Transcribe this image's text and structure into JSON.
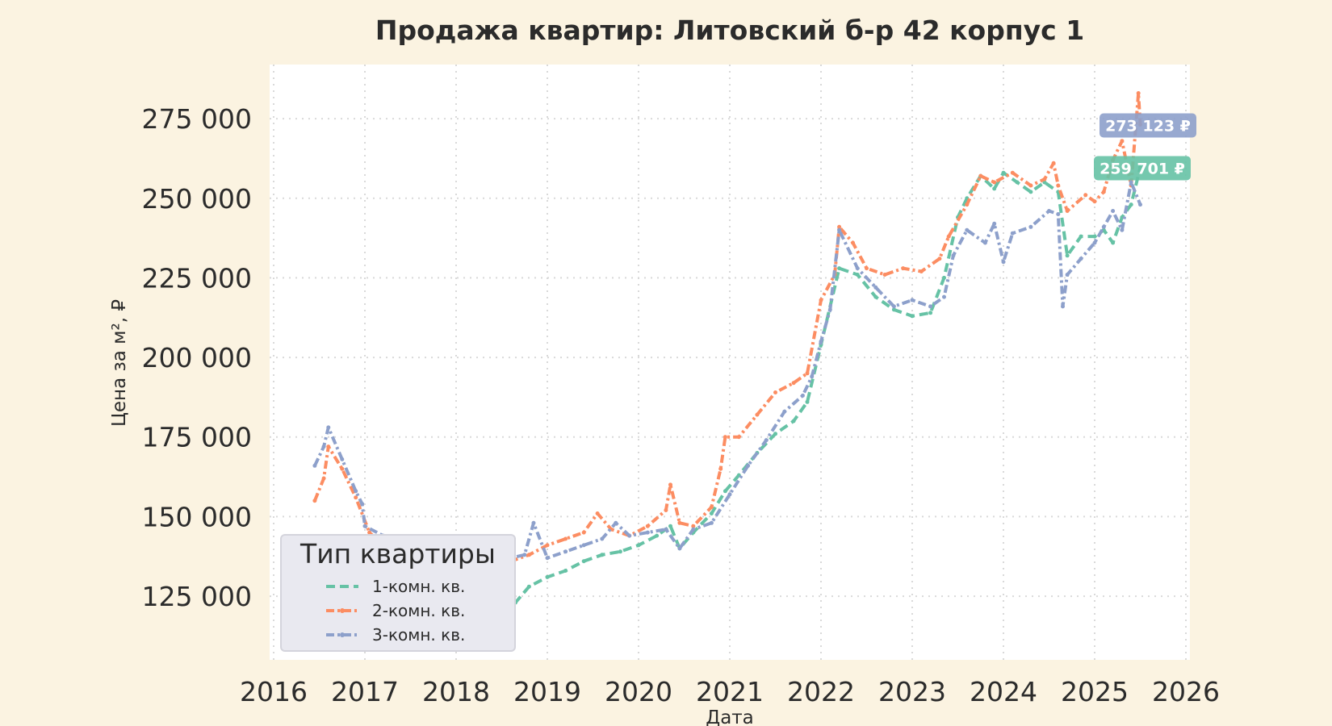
{
  "chart_data": {
    "type": "line",
    "title": "Продажа квартир: Литовский б-р 42 корпус 1",
    "xlabel": "Дата",
    "ylabel": "Цена за м², ₽",
    "xlim": [
      2016,
      2026
    ],
    "ylim": [
      105000,
      292000
    ],
    "x_ticks": [
      "2016",
      "2017",
      "2018",
      "2019",
      "2020",
      "2021",
      "2022",
      "2023",
      "2024",
      "2025",
      "2026"
    ],
    "y_ticks": [
      "125 000",
      "150 000",
      "175 000",
      "200 000",
      "225 000",
      "250 000",
      "275 000"
    ],
    "grid": true,
    "legend": {
      "title": "Тип квартиры",
      "position": "bottom-left"
    },
    "series": [
      {
        "name": "1-комн. кв.",
        "color": "#66c2a5",
        "style": "dashed",
        "x": [
          2016.45,
          2016.7,
          2017.0,
          2017.3,
          2017.6,
          2017.9,
          2018.1,
          2018.3,
          2018.5,
          2018.65,
          2018.8,
          2019.0,
          2019.2,
          2019.4,
          2019.6,
          2019.8,
          2020.0,
          2020.2,
          2020.35,
          2020.45,
          2020.6,
          2020.8,
          2020.95,
          2021.1,
          2021.3,
          2021.5,
          2021.7,
          2021.85,
          2022.0,
          2022.2,
          2022.4,
          2022.6,
          2022.8,
          2023.0,
          2023.2,
          2023.35,
          2023.5,
          2023.6,
          2023.75,
          2023.9,
          2024.0,
          2024.15,
          2024.3,
          2024.45,
          2024.6,
          2024.7,
          2024.85,
          2025.0,
          2025.1,
          2025.2,
          2025.3,
          2025.4,
          2025.5
        ],
        "values": [
          130000,
          129000,
          128000,
          127000,
          126000,
          125000,
          118000,
          116000,
          119000,
          123000,
          128000,
          131000,
          133000,
          136000,
          138000,
          139000,
          141000,
          144000,
          147000,
          140000,
          145000,
          151000,
          158000,
          163000,
          170000,
          176000,
          180000,
          186000,
          204000,
          228000,
          226000,
          219000,
          215000,
          213000,
          214000,
          225000,
          244000,
          250000,
          257000,
          253000,
          258000,
          255000,
          252000,
          255000,
          252000,
          232000,
          238000,
          238000,
          240000,
          236000,
          244000,
          248000,
          259701
        ]
      },
      {
        "name": "2-комн. кв.",
        "color": "#fc8d62",
        "style": "dashdot",
        "x": [
          2016.45,
          2016.55,
          2016.6,
          2016.75,
          2016.9,
          2017.05,
          2017.2,
          2017.4,
          2017.6,
          2017.8,
          2018.0,
          2018.2,
          2018.4,
          2018.6,
          2018.8,
          2019.0,
          2019.2,
          2019.4,
          2019.55,
          2019.7,
          2019.9,
          2020.1,
          2020.3,
          2020.35,
          2020.45,
          2020.6,
          2020.8,
          2020.9,
          2020.95,
          2021.1,
          2021.3,
          2021.5,
          2021.7,
          2021.85,
          2022.0,
          2022.15,
          2022.2,
          2022.35,
          2022.5,
          2022.7,
          2022.9,
          2023.1,
          2023.3,
          2023.4,
          2023.6,
          2023.75,
          2023.9,
          2024.1,
          2024.3,
          2024.45,
          2024.55,
          2024.6,
          2024.7,
          2024.9,
          2025.0,
          2025.1,
          2025.2,
          2025.3,
          2025.4,
          2025.48,
          2025.5
        ],
        "values": [
          155000,
          162000,
          172000,
          165000,
          156000,
          145000,
          141000,
          138000,
          137000,
          136000,
          133000,
          132000,
          134000,
          136000,
          138000,
          141000,
          143000,
          145000,
          151000,
          146000,
          144000,
          147000,
          152000,
          160000,
          148000,
          147000,
          153000,
          165000,
          175000,
          175000,
          182000,
          189000,
          192000,
          195000,
          218000,
          226000,
          241000,
          236000,
          228000,
          226000,
          228000,
          227000,
          231000,
          238000,
          248000,
          257000,
          255000,
          258000,
          254000,
          256000,
          261000,
          254000,
          246000,
          251000,
          249000,
          252000,
          262000,
          268000,
          254000,
          283000,
          273123
        ]
      },
      {
        "name": "3-комн. кв.",
        "color": "#8da0cb",
        "style": "dashdot",
        "x": [
          2016.45,
          2016.55,
          2016.6,
          2016.75,
          2016.9,
          2016.97,
          2017.0,
          2017.2,
          2017.4,
          2017.6,
          2017.8,
          2018.0,
          2018.3,
          2018.6,
          2018.75,
          2018.85,
          2019.0,
          2019.2,
          2019.4,
          2019.6,
          2019.75,
          2019.9,
          2020.1,
          2020.3,
          2020.45,
          2020.6,
          2020.8,
          2021.0,
          2021.2,
          2021.4,
          2021.6,
          2021.8,
          2021.9,
          2022.0,
          2022.1,
          2022.2,
          2022.4,
          2022.6,
          2022.8,
          2023.0,
          2023.2,
          2023.35,
          2023.45,
          2023.6,
          2023.8,
          2023.9,
          2024.0,
          2024.1,
          2024.3,
          2024.5,
          2024.6,
          2024.65,
          2024.7,
          2024.85,
          2025.0,
          2025.1,
          2025.2,
          2025.3,
          2025.4,
          2025.5
        ],
        "values": [
          166000,
          172000,
          178000,
          168000,
          158000,
          154000,
          147000,
          144000,
          143000,
          141000,
          139000,
          137000,
          136000,
          137000,
          138000,
          148000,
          137000,
          139000,
          141000,
          143000,
          148000,
          144000,
          145000,
          146000,
          140000,
          146000,
          148000,
          157000,
          166000,
          174000,
          183000,
          188000,
          194000,
          205000,
          215000,
          240000,
          228000,
          222000,
          216000,
          218000,
          216000,
          219000,
          232000,
          240000,
          236000,
          242000,
          230000,
          239000,
          241000,
          246000,
          245000,
          216000,
          226000,
          231000,
          236000,
          241000,
          246000,
          240000,
          255000,
          248000
        ]
      }
    ],
    "annotations": [
      {
        "text": "273 123 ₽",
        "value": 273123,
        "color": "#8da0cb"
      },
      {
        "text": "259 701 ₽",
        "value": 259701,
        "color": "#66c2a5"
      }
    ]
  }
}
